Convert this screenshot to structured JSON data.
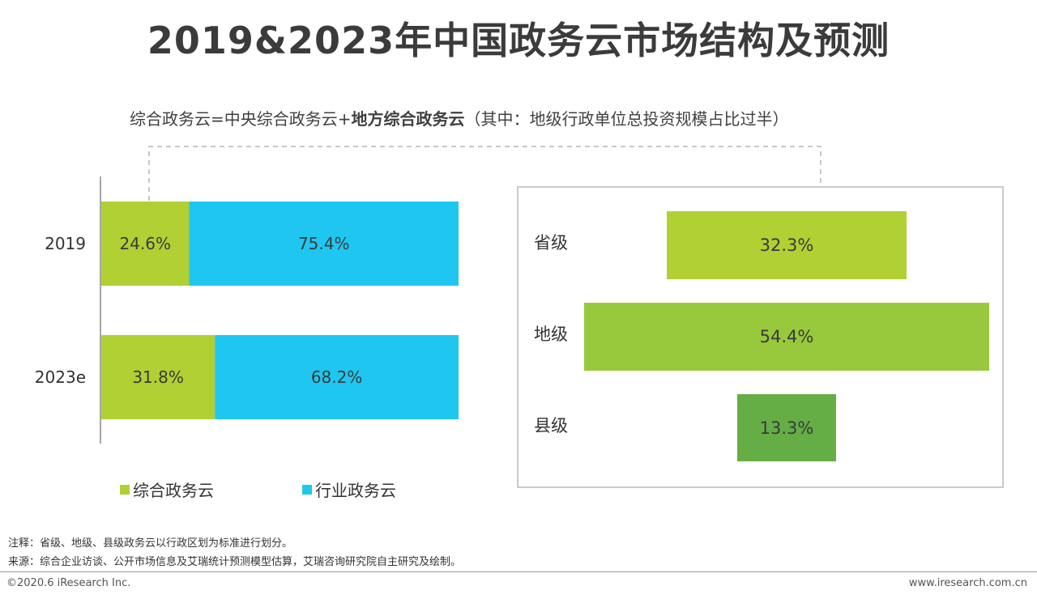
{
  "title": "2019&2023年中国政务云市场结构及预测",
  "subtitle": {
    "part1": "综合政务云=中央综合政务云+",
    "bold": "地方综合政务云",
    "part2": "（其中：地级行政单位总投资规模占比过半）"
  },
  "colors": {
    "comprehensive": "#b0d034",
    "industry": "#1fc7f0",
    "provincial": "#b0d034",
    "prefecture": "#98c93c",
    "county": "#65ad45"
  },
  "chart_data": [
    {
      "type": "bar",
      "orientation": "horizontal",
      "stacked": true,
      "categories": [
        "2019",
        "2023e"
      ],
      "series": [
        {
          "name": "综合政务云",
          "values": [
            24.6,
            31.8
          ],
          "labels": [
            "24.6%",
            "31.8%"
          ]
        },
        {
          "name": "行业政务云",
          "values": [
            75.4,
            68.2
          ],
          "labels": [
            "75.4%",
            "68.2%"
          ]
        }
      ],
      "xlim": [
        0,
        100
      ],
      "legend_position": "bottom"
    },
    {
      "type": "bar",
      "orientation": "horizontal",
      "centered": true,
      "categories": [
        "省级",
        "地级",
        "县级"
      ],
      "values": [
        32.3,
        54.4,
        13.3
      ],
      "labels": [
        "32.3%",
        "54.4%",
        "13.3%"
      ]
    }
  ],
  "notes": {
    "note": "注释：省级、地级、县级政务云以行政区划为标准进行划分。",
    "source": "来源：综合企业访谈、公开市场信息及艾瑞统计预测模型估算，艾瑞咨询研究院自主研究及绘制。"
  },
  "footer": {
    "copyright": "©2020.6 iResearch Inc.",
    "website": "www.iresearch.com.cn"
  }
}
